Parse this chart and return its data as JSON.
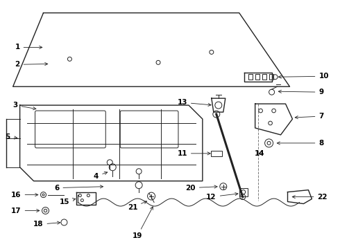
{
  "bg_color": "#ffffff",
  "line_color": "#222222",
  "label_color": "#000000",
  "fig_width": 4.9,
  "fig_height": 3.6,
  "dpi": 100
}
